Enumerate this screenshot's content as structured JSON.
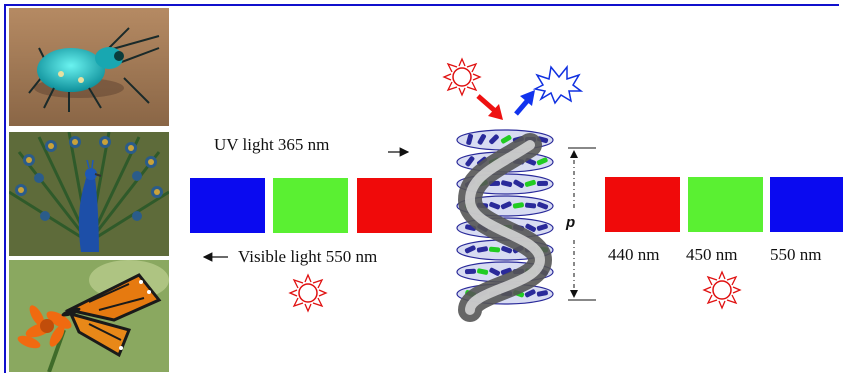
{
  "colors": {
    "frame": "#1010cc",
    "blue": "#0a0af0",
    "green": "#5af032",
    "red": "#f00a0a",
    "sun": "#ff0000",
    "arrow_in": "#ee1111",
    "arrow_out": "#1133ee",
    "helix_rod": "#2a2a9a",
    "helix_green": "#22cc22"
  },
  "photos": [
    {
      "subject": "tiger-beetle"
    },
    {
      "subject": "peacock"
    },
    {
      "subject": "monarch-butterfly"
    }
  ],
  "labels": {
    "uv_light": "UV light 365 nm",
    "visible_light": "Visible light 550 nm",
    "pitch": "p"
  },
  "left_swatches": [
    "blue",
    "green",
    "red"
  ],
  "right_swatches": [
    {
      "color": "red",
      "label": "440 nm"
    },
    {
      "color": "green",
      "label": "450 nm"
    },
    {
      "color": "blue",
      "label": "550 nm"
    }
  ],
  "icons": {
    "sun": "sun-icon",
    "starburst": "reflected-light-icon"
  }
}
